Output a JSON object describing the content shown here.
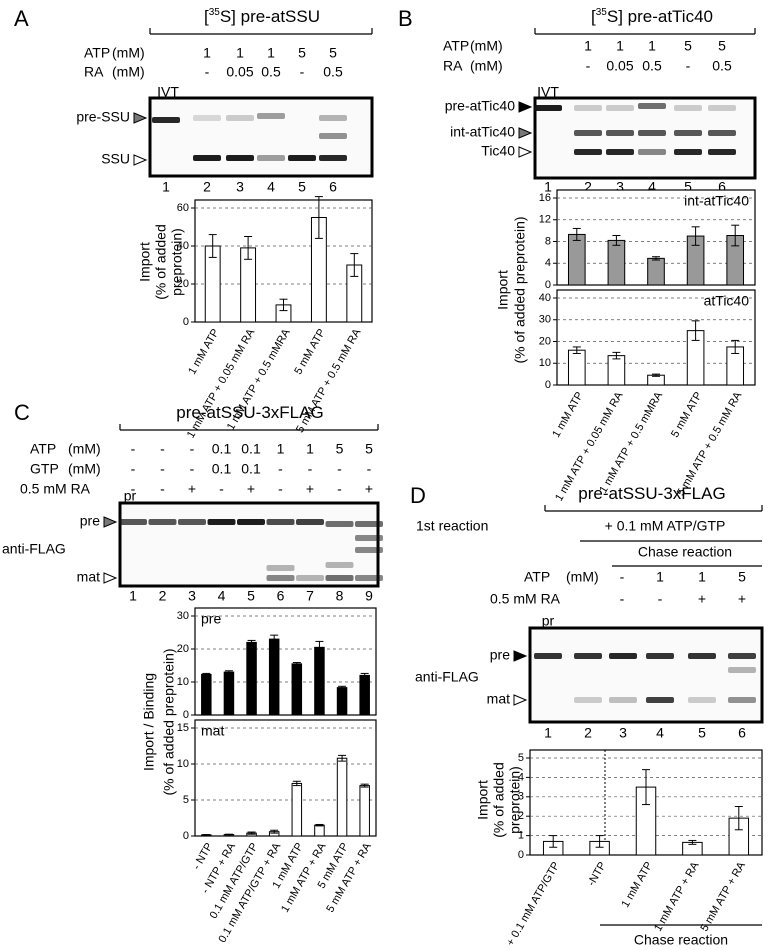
{
  "panels": [
    {
      "letter": "A",
      "title": [
        "[",
        "35",
        "S] pre-atSSU"
      ],
      "rows": [
        {
          "label": "ATP",
          "unit": "(mM)",
          "values": [
            "1",
            "1",
            "1",
            "5",
            "5"
          ]
        },
        {
          "label": "RA",
          "unit": "(mM)",
          "values": [
            "-",
            "0.05",
            "0.5",
            "-",
            "0.5"
          ]
        }
      ],
      "lane_top": "IVT",
      "markers": [
        "pre-SSU",
        "SSU"
      ],
      "lanes": [
        "1",
        "2",
        "3",
        "4",
        "5",
        "6"
      ],
      "ylabel": [
        "Import",
        "(% of added",
        "preprotein)"
      ]
    },
    {
      "letter": "B",
      "title": [
        "[",
        "35",
        "S] pre-atTic40"
      ],
      "rows": [
        {
          "label": "ATP",
          "unit": "(mM)",
          "values": [
            "1",
            "1",
            "1",
            "5",
            "5"
          ]
        },
        {
          "label": "RA",
          "unit": "(mM)",
          "values": [
            "-",
            "0.05",
            "0.5",
            "-",
            "0.5"
          ]
        }
      ],
      "lane_top": "IVT",
      "markers": [
        "pre-atTic40",
        "int-atTic40",
        "Tic40"
      ],
      "lanes": [
        "1",
        "2",
        "3",
        "4",
        "5",
        "6"
      ],
      "ylabel": [
        "Import",
        "(% of added preprotein)"
      ]
    },
    {
      "letter": "C",
      "title": [
        "pre-atSSU-3xFLAG"
      ],
      "rows": [
        {
          "label": "ATP",
          "unit": "(mM)",
          "values": [
            "-",
            "-",
            "-",
            "0.1",
            "0.1",
            "1",
            "1",
            "5",
            "5"
          ]
        },
        {
          "label": "GTP",
          "unit": "(mM)",
          "values": [
            "-",
            "-",
            "-",
            "0.1",
            "0.1",
            "-",
            "-",
            "-",
            "-"
          ]
        },
        {
          "label": "0.5 mM RA",
          "values": [
            "-",
            "-",
            "+",
            "-",
            "+",
            "-",
            "+",
            "-",
            "+"
          ]
        }
      ],
      "lane_top": "pr",
      "markers": [
        "pre",
        "mat"
      ],
      "antibody": "anti-FLAG",
      "lanes": [
        "1",
        "2",
        "3",
        "4",
        "5",
        "6",
        "7",
        "8",
        "9"
      ],
      "ylabel": [
        "Import / Binding",
        "(% of added preprotein)"
      ]
    },
    {
      "letter": "D",
      "title": [
        "pre-atSSU-3xFLAG"
      ],
      "first_reaction": "1st reaction",
      "first_condition": "+ 0.1 mM ATP/GTP",
      "chase": "Chase reaction",
      "rows": [
        {
          "label": "ATP",
          "unit": "(mM)",
          "values": [
            "-",
            "1",
            "1",
            "5"
          ]
        },
        {
          "label": "0.5 mM RA",
          "values": [
            "-",
            "-",
            "+",
            "+"
          ]
        }
      ],
      "lane_top": "pr",
      "markers": [
        "pre",
        "mat"
      ],
      "antibody": "anti-FLAG",
      "lanes": [
        "1",
        "2",
        "3",
        "4",
        "5",
        "6"
      ],
      "ylabel": [
        "Import",
        "(% of added",
        "preprotein)"
      ],
      "x_group": "Chase reaction"
    }
  ],
  "chart_data": [
    {
      "type": "bar",
      "color": "#ffffff",
      "categories": [
        "1 mM ATP",
        "1 mM ATP + 0.05 mM RA",
        "1 mM ATP + 0.5 mMRA",
        "5 mM ATP",
        "5 mM ATP + 0.5 mM RA"
      ],
      "values": [
        40,
        39,
        9,
        55,
        30
      ],
      "errors": [
        6,
        6,
        3,
        11,
        6
      ],
      "ylim": [
        0,
        60
      ],
      "yticks": [
        0,
        20,
        40,
        60
      ],
      "grid": true
    },
    {
      "type": "bar",
      "title": "int-atTic40",
      "color": "#999999",
      "values": [
        9.3,
        8.2,
        4.9,
        9,
        9.1
      ],
      "errors": [
        1.1,
        0.9,
        0.3,
        1.7,
        1.9
      ],
      "ylim": [
        0,
        16
      ],
      "yticks": [
        0,
        4,
        8,
        12,
        16
      ],
      "grid": true
    },
    {
      "type": "bar",
      "title": "atTic40",
      "color": "#ffffff",
      "categories": [
        "1 mM ATP",
        "1 mM ATP + 0.05 mM RA",
        "1 mM ATP + 0.5 mMRA",
        "5 mM ATP",
        "5 mM ATP + 0.5 mM RA"
      ],
      "values": [
        16,
        13.5,
        4.5,
        25,
        17.5
      ],
      "errors": [
        1.5,
        1.5,
        0.5,
        4.5,
        3
      ],
      "ylim": [
        0,
        40
      ],
      "yticks": [
        0,
        10,
        20,
        30,
        40
      ],
      "grid": true
    },
    {
      "type": "bar",
      "title": "pre",
      "color": "#000000",
      "values": [
        12.3,
        13,
        22,
        23,
        15.5,
        20.5,
        8.3,
        12
      ],
      "errors": [
        0.3,
        0.4,
        0.6,
        1.2,
        0.4,
        1.8,
        0.4,
        0.6
      ],
      "ylim": [
        0,
        30
      ],
      "yticks": [
        0,
        10,
        20,
        30
      ],
      "grid": true
    },
    {
      "type": "bar",
      "title": "mat",
      "color": "#ffffff",
      "categories": [
        "- NTP",
        "- NTP + RA",
        "0.1 mM ATP/GTP",
        "0.1 mM ATP/GTP + RA",
        "1 mM ATP",
        "1 mM ATP + RA",
        "5 mM ATP",
        "5 mM ATP + RA"
      ],
      "values": [
        0.15,
        0.2,
        0.4,
        0.6,
        7.3,
        1.5,
        10.8,
        7
      ],
      "errors": [
        0.05,
        0.05,
        0.15,
        0.2,
        0.3,
        0.1,
        0.4,
        0.2
      ],
      "ylim": [
        0,
        15
      ],
      "yticks": [
        0,
        5,
        10,
        15
      ],
      "grid": true
    },
    {
      "type": "bar",
      "color": "#ffffff",
      "categories": [
        "+ 0.1 mM ATP/GTP",
        "-NTP",
        "1 mM ATP",
        "1 mM ATP + RA",
        "5 mM ATP + RA"
      ],
      "values": [
        0.7,
        0.7,
        3.5,
        0.65,
        1.9
      ],
      "errors": [
        0.3,
        0.3,
        0.9,
        0.1,
        0.6
      ],
      "ylim": [
        0,
        5
      ],
      "yticks": [
        0,
        1,
        2,
        3,
        4,
        5
      ],
      "grid": true
    }
  ]
}
